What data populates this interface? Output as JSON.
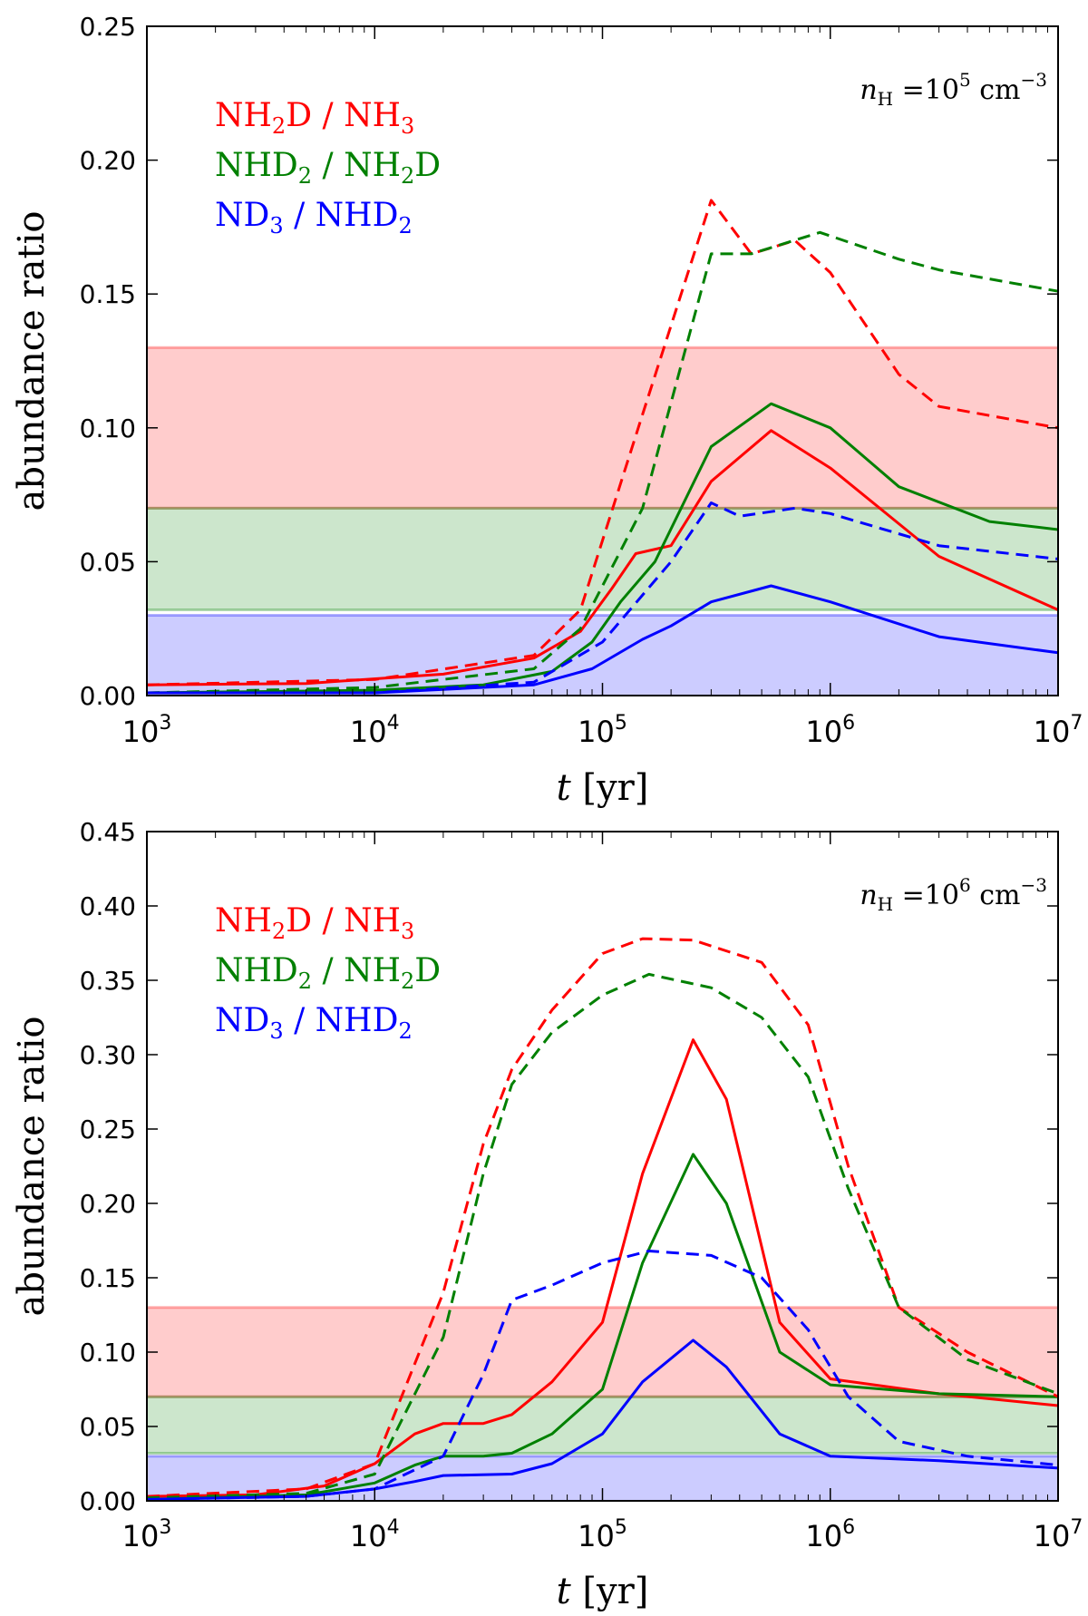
{
  "chart_data": [
    {
      "type": "line",
      "panel": "top",
      "annotation": "n_H = 10^5 cm^-3",
      "xlabel": "t [yr]",
      "ylabel": "abundance ratio",
      "xscale": "log",
      "xlim": [
        1000,
        10000000
      ],
      "ylim": [
        0,
        0.25
      ],
      "yticks": [
        "0.00",
        "0.05",
        "0.10",
        "0.15",
        "0.20",
        "0.25"
      ],
      "xticks": [
        {
          "base": "10",
          "exp": "3"
        },
        {
          "base": "10",
          "exp": "4"
        },
        {
          "base": "10",
          "exp": "5"
        },
        {
          "base": "10",
          "exp": "6"
        },
        {
          "base": "10",
          "exp": "7"
        }
      ],
      "bands": [
        {
          "name": "NH2D/NH3 observed",
          "color": "#ff0000",
          "range": [
            0.07,
            0.13
          ]
        },
        {
          "name": "NHD2/NH2D observed",
          "color": "#008000",
          "range": [
            0.032,
            0.07
          ]
        },
        {
          "name": "ND3/NHD2 observed",
          "color": "#0000ff",
          "range": [
            0.0,
            0.03
          ]
        }
      ],
      "series": [
        {
          "name": "NH2D / NH3",
          "color": "#ff0000",
          "style": "solid",
          "x": [
            1000,
            5000,
            20000,
            50000,
            80000,
            110000,
            140000,
            200000,
            300000,
            550000,
            1000000,
            3000000,
            10000000
          ],
          "y": [
            0.004,
            0.0045,
            0.008,
            0.014,
            0.024,
            0.04,
            0.053,
            0.056,
            0.08,
            0.099,
            0.085,
            0.052,
            0.032
          ]
        },
        {
          "name": "NHD2 / NH2D",
          "color": "#008000",
          "style": "solid",
          "x": [
            1000,
            10000,
            30000,
            60000,
            90000,
            120000,
            170000,
            300000,
            550000,
            1000000,
            2000000,
            5000000,
            10000000
          ],
          "y": [
            0.001,
            0.002,
            0.004,
            0.009,
            0.02,
            0.035,
            0.05,
            0.093,
            0.109,
            0.1,
            0.078,
            0.065,
            0.062
          ]
        },
        {
          "name": "ND3 / NHD2",
          "color": "#0000ff",
          "style": "solid",
          "x": [
            1000,
            10000,
            50000,
            90000,
            150000,
            200000,
            300000,
            550000,
            1000000,
            3000000,
            10000000
          ],
          "y": [
            0.001,
            0.001,
            0.004,
            0.01,
            0.021,
            0.026,
            0.035,
            0.041,
            0.035,
            0.022,
            0.016
          ]
        },
        {
          "name": "NH2D / NH3",
          "color": "#ff0000",
          "style": "dashed",
          "x": [
            1000,
            10000,
            50000,
            80000,
            150000,
            300000,
            450000,
            700000,
            1000000,
            2000000,
            3000000,
            10000000
          ],
          "y": [
            0.004,
            0.006,
            0.015,
            0.032,
            0.105,
            0.185,
            0.165,
            0.17,
            0.158,
            0.12,
            0.108,
            0.1
          ]
        },
        {
          "name": "NHD2 / NH2D",
          "color": "#008000",
          "style": "dashed",
          "x": [
            1000,
            10000,
            50000,
            80000,
            150000,
            300000,
            450000,
            900000,
            2000000,
            3000000,
            10000000
          ],
          "y": [
            0.001,
            0.003,
            0.01,
            0.025,
            0.07,
            0.165,
            0.165,
            0.173,
            0.163,
            0.159,
            0.151
          ]
        },
        {
          "name": "ND3 / NHD2",
          "color": "#0000ff",
          "style": "dashed",
          "x": [
            1000,
            10000,
            50000,
            100000,
            200000,
            300000,
            400000,
            700000,
            1000000,
            3000000,
            10000000
          ],
          "y": [
            0.001,
            0.001,
            0.005,
            0.02,
            0.05,
            0.072,
            0.067,
            0.07,
            0.068,
            0.056,
            0.051
          ]
        }
      ],
      "legend": {
        "placement": "top-left",
        "entries": [
          {
            "label": "NH₂D / NH₃",
            "color": "#ff0000"
          },
          {
            "label": "NHD₂ / NH₂D",
            "color": "#008000"
          },
          {
            "label": "ND₃ / NHD₂",
            "color": "#0000ff"
          }
        ]
      }
    },
    {
      "type": "line",
      "panel": "bottom",
      "annotation": "n_H = 10^6 cm^-3",
      "xlabel": "t [yr]",
      "ylabel": "abundance ratio",
      "xscale": "log",
      "xlim": [
        1000,
        10000000
      ],
      "ylim": [
        0,
        0.45
      ],
      "yticks": [
        "0.00",
        "0.05",
        "0.10",
        "0.15",
        "0.20",
        "0.25",
        "0.30",
        "0.35",
        "0.40",
        "0.45"
      ],
      "xticks": [
        {
          "base": "10",
          "exp": "3"
        },
        {
          "base": "10",
          "exp": "4"
        },
        {
          "base": "10",
          "exp": "5"
        },
        {
          "base": "10",
          "exp": "6"
        },
        {
          "base": "10",
          "exp": "7"
        }
      ],
      "bands": [
        {
          "name": "NH2D/NH3 observed",
          "color": "#ff0000",
          "range": [
            0.07,
            0.13
          ]
        },
        {
          "name": "NHD2/NH2D observed",
          "color": "#008000",
          "range": [
            0.032,
            0.07
          ]
        },
        {
          "name": "ND3/NHD2 observed",
          "color": "#0000ff",
          "range": [
            0.0,
            0.03
          ]
        }
      ],
      "series": [
        {
          "name": "NH2D / NH3",
          "color": "#ff0000",
          "style": "solid",
          "x": [
            1000,
            3000,
            6000,
            10000,
            15000,
            20000,
            30000,
            40000,
            60000,
            100000,
            150000,
            250000,
            350000,
            600000,
            1000000,
            3000000,
            10000000
          ],
          "y": [
            0.003,
            0.004,
            0.01,
            0.025,
            0.045,
            0.052,
            0.052,
            0.058,
            0.08,
            0.12,
            0.22,
            0.31,
            0.27,
            0.12,
            0.082,
            0.072,
            0.064
          ]
        },
        {
          "name": "NHD2 / NH2D",
          "color": "#008000",
          "style": "solid",
          "x": [
            1000,
            5000,
            10000,
            15000,
            20000,
            30000,
            40000,
            60000,
            100000,
            150000,
            250000,
            350000,
            600000,
            1000000,
            3000000,
            10000000
          ],
          "y": [
            0.001,
            0.004,
            0.012,
            0.024,
            0.03,
            0.03,
            0.032,
            0.045,
            0.075,
            0.16,
            0.233,
            0.2,
            0.1,
            0.078,
            0.072,
            0.07
          ]
        },
        {
          "name": "ND3 / NHD2",
          "color": "#0000ff",
          "style": "solid",
          "x": [
            1000,
            5000,
            10000,
            15000,
            20000,
            40000,
            60000,
            100000,
            150000,
            250000,
            350000,
            600000,
            1000000,
            3000000,
            10000000
          ],
          "y": [
            0.001,
            0.003,
            0.008,
            0.013,
            0.017,
            0.018,
            0.025,
            0.045,
            0.08,
            0.108,
            0.09,
            0.045,
            0.03,
            0.027,
            0.022
          ]
        },
        {
          "name": "NH2D / NH3",
          "color": "#ff0000",
          "style": "dashed",
          "x": [
            1000,
            5000,
            10000,
            20000,
            30000,
            40000,
            60000,
            100000,
            150000,
            250000,
            500000,
            800000,
            1200000,
            2000000,
            4000000,
            10000000
          ],
          "y": [
            0.003,
            0.008,
            0.025,
            0.14,
            0.24,
            0.29,
            0.33,
            0.368,
            0.378,
            0.377,
            0.362,
            0.32,
            0.225,
            0.13,
            0.1,
            0.07
          ]
        },
        {
          "name": "NHD2 / NH2D",
          "color": "#008000",
          "style": "dashed",
          "x": [
            1000,
            5000,
            10000,
            20000,
            30000,
            40000,
            60000,
            100000,
            160000,
            300000,
            500000,
            800000,
            1200000,
            2000000,
            4000000,
            10000000
          ],
          "y": [
            0.002,
            0.005,
            0.018,
            0.11,
            0.22,
            0.28,
            0.315,
            0.34,
            0.354,
            0.345,
            0.325,
            0.285,
            0.21,
            0.13,
            0.095,
            0.072
          ]
        },
        {
          "name": "ND3 / NHD2",
          "color": "#0000ff",
          "style": "dashed",
          "x": [
            1000,
            5000,
            10000,
            20000,
            30000,
            40000,
            60000,
            100000,
            160000,
            300000,
            500000,
            800000,
            1200000,
            2000000,
            4000000,
            10000000
          ],
          "y": [
            0.001,
            0.003,
            0.008,
            0.03,
            0.085,
            0.135,
            0.145,
            0.16,
            0.168,
            0.165,
            0.15,
            0.115,
            0.07,
            0.04,
            0.03,
            0.024
          ]
        }
      ],
      "legend": {
        "placement": "top-left",
        "entries": [
          {
            "label": "NH₂D / NH₃",
            "color": "#ff0000"
          },
          {
            "label": "NHD₂ / NH₂D",
            "color": "#008000"
          },
          {
            "label": "ND₃ / NHD₂",
            "color": "#0000ff"
          }
        ]
      }
    }
  ]
}
